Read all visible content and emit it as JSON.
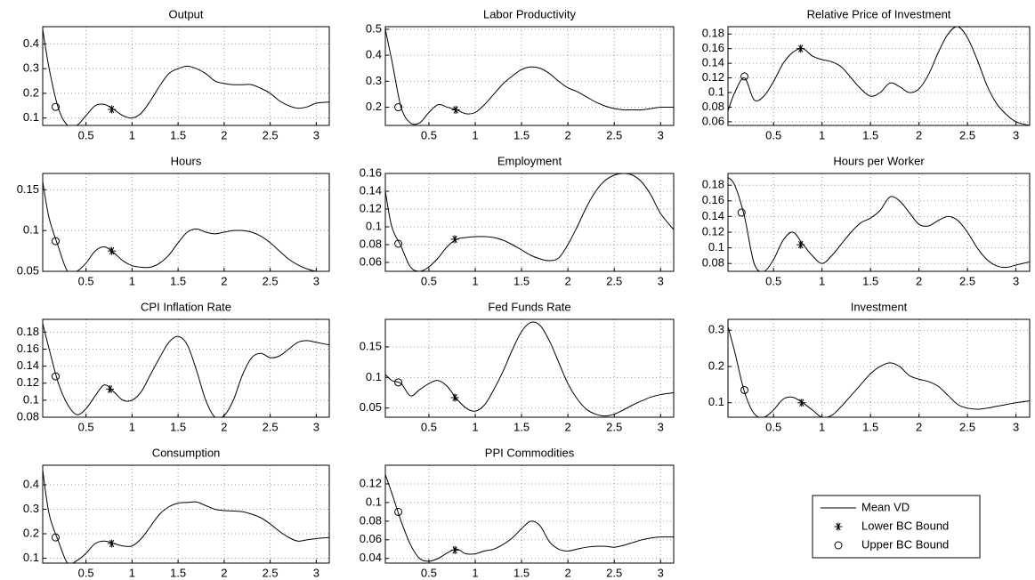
{
  "chart_data": [
    {
      "type": "line",
      "title": "Output",
      "x": [
        0.03,
        0.1,
        0.2,
        0.3,
        0.4,
        0.5,
        0.6,
        0.7,
        0.8,
        0.9,
        1.0,
        1.1,
        1.2,
        1.3,
        1.4,
        1.5,
        1.6,
        1.7,
        1.8,
        1.9,
        2.0,
        2.1,
        2.2,
        2.3,
        2.4,
        2.5,
        2.6,
        2.7,
        2.8,
        2.9,
        3.0,
        3.14
      ],
      "values": [
        0.46,
        0.3,
        0.14,
        0.07,
        0.07,
        0.11,
        0.15,
        0.155,
        0.135,
        0.11,
        0.1,
        0.12,
        0.17,
        0.23,
        0.28,
        0.3,
        0.31,
        0.3,
        0.28,
        0.25,
        0.24,
        0.235,
        0.235,
        0.235,
        0.22,
        0.2,
        0.17,
        0.15,
        0.14,
        0.145,
        0.16,
        0.165
      ],
      "upper_bound": {
        "x": 0.17,
        "value": 0.145
      },
      "lower_bound": {
        "x": 0.78,
        "value": 0.135
      },
      "color": "#000000",
      "xlim": [
        0.03,
        3.1416
      ],
      "ylim": [
        0.07,
        0.47
      ],
      "xticks": [
        0.5,
        1,
        1.5,
        2,
        2.5,
        3
      ],
      "yticks": [
        0.1,
        0.2,
        0.3,
        0.4
      ],
      "grid": true
    },
    {
      "type": "line",
      "title": "Labor Productivity",
      "x": [
        0.03,
        0.1,
        0.2,
        0.3,
        0.4,
        0.5,
        0.6,
        0.7,
        0.8,
        0.9,
        1.0,
        1.1,
        1.2,
        1.3,
        1.4,
        1.5,
        1.6,
        1.7,
        1.8,
        1.9,
        2.0,
        2.1,
        2.2,
        2.3,
        2.4,
        2.5,
        2.6,
        2.7,
        2.8,
        2.9,
        3.0,
        3.14
      ],
      "values": [
        0.5,
        0.38,
        0.2,
        0.14,
        0.14,
        0.18,
        0.21,
        0.2,
        0.19,
        0.175,
        0.18,
        0.21,
        0.25,
        0.29,
        0.32,
        0.345,
        0.355,
        0.35,
        0.33,
        0.3,
        0.275,
        0.26,
        0.24,
        0.22,
        0.205,
        0.195,
        0.19,
        0.19,
        0.19,
        0.195,
        0.2,
        0.2
      ],
      "upper_bound": {
        "x": 0.17,
        "value": 0.2
      },
      "lower_bound": {
        "x": 0.79,
        "value": 0.19
      },
      "color": "#000000",
      "xlim": [
        0.03,
        3.1416
      ],
      "ylim": [
        0.13,
        0.51
      ],
      "xticks": [
        0.5,
        1,
        1.5,
        2,
        2.5,
        3
      ],
      "yticks": [
        0.2,
        0.3,
        0.4,
        0.5
      ],
      "grid": true
    },
    {
      "type": "line",
      "title": "Relative Price of Investment",
      "x": [
        0.03,
        0.1,
        0.2,
        0.3,
        0.4,
        0.5,
        0.6,
        0.7,
        0.8,
        0.9,
        1.0,
        1.1,
        1.2,
        1.3,
        1.4,
        1.5,
        1.6,
        1.7,
        1.8,
        1.9,
        2.0,
        2.1,
        2.2,
        2.3,
        2.4,
        2.5,
        2.6,
        2.7,
        2.8,
        2.9,
        3.0,
        3.14
      ],
      "values": [
        0.075,
        0.1,
        0.12,
        0.09,
        0.095,
        0.115,
        0.14,
        0.155,
        0.16,
        0.15,
        0.145,
        0.142,
        0.135,
        0.12,
        0.105,
        0.095,
        0.1,
        0.113,
        0.108,
        0.1,
        0.105,
        0.125,
        0.155,
        0.18,
        0.19,
        0.175,
        0.145,
        0.11,
        0.085,
        0.07,
        0.06,
        0.055
      ],
      "upper_bound": {
        "x": 0.2,
        "value": 0.122
      },
      "lower_bound": {
        "x": 0.78,
        "value": 0.16
      },
      "color": "#000000",
      "xlim": [
        0.03,
        3.1416
      ],
      "ylim": [
        0.055,
        0.19
      ],
      "xticks": [
        0.5,
        1,
        1.5,
        2,
        2.5,
        3
      ],
      "yticks": [
        0.06,
        0.08,
        0.1,
        0.12,
        0.14,
        0.16,
        0.18
      ],
      "grid": true
    },
    {
      "type": "line",
      "title": "Hours",
      "x": [
        0.03,
        0.1,
        0.2,
        0.3,
        0.4,
        0.5,
        0.6,
        0.7,
        0.8,
        0.9,
        1.0,
        1.1,
        1.2,
        1.3,
        1.4,
        1.5,
        1.6,
        1.7,
        1.8,
        1.9,
        2.0,
        2.1,
        2.2,
        2.3,
        2.4,
        2.5,
        2.6,
        2.7,
        2.8,
        2.9,
        3.0,
        3.14
      ],
      "values": [
        0.16,
        0.115,
        0.08,
        0.05,
        0.05,
        0.06,
        0.075,
        0.08,
        0.073,
        0.063,
        0.057,
        0.055,
        0.055,
        0.06,
        0.07,
        0.085,
        0.098,
        0.102,
        0.098,
        0.096,
        0.098,
        0.1,
        0.1,
        0.098,
        0.093,
        0.085,
        0.075,
        0.065,
        0.058,
        0.053,
        0.05,
        0.05
      ],
      "upper_bound": {
        "x": 0.17,
        "value": 0.087
      },
      "lower_bound": {
        "x": 0.78,
        "value": 0.075
      },
      "color": "#000000",
      "xlim": [
        0.03,
        3.1416
      ],
      "ylim": [
        0.05,
        0.17
      ],
      "xticks": [
        0.5,
        1,
        1.5,
        2,
        2.5,
        3
      ],
      "yticks": [
        0.05,
        0.1,
        0.15
      ],
      "grid": true
    },
    {
      "type": "line",
      "title": "Employment",
      "x": [
        0.03,
        0.1,
        0.2,
        0.3,
        0.4,
        0.5,
        0.6,
        0.7,
        0.8,
        0.9,
        1.0,
        1.1,
        1.2,
        1.3,
        1.4,
        1.5,
        1.6,
        1.7,
        1.8,
        1.9,
        2.0,
        2.1,
        2.2,
        2.3,
        2.4,
        2.5,
        2.6,
        2.7,
        2.8,
        2.9,
        3.0,
        3.14
      ],
      "values": [
        0.14,
        0.1,
        0.078,
        0.055,
        0.05,
        0.055,
        0.065,
        0.078,
        0.086,
        0.088,
        0.089,
        0.089,
        0.088,
        0.085,
        0.08,
        0.074,
        0.068,
        0.064,
        0.062,
        0.065,
        0.08,
        0.1,
        0.122,
        0.14,
        0.152,
        0.158,
        0.16,
        0.158,
        0.15,
        0.135,
        0.115,
        0.097
      ],
      "upper_bound": {
        "x": 0.17,
        "value": 0.081
      },
      "lower_bound": {
        "x": 0.78,
        "value": 0.086
      },
      "color": "#000000",
      "xlim": [
        0.03,
        3.1416
      ],
      "ylim": [
        0.05,
        0.16
      ],
      "xticks": [
        0.5,
        1,
        1.5,
        2,
        2.5,
        3
      ],
      "yticks": [
        0.06,
        0.08,
        0.1,
        0.12,
        0.14,
        0.16
      ],
      "grid": true
    },
    {
      "type": "line",
      "title": "Hours per Worker",
      "x": [
        0.03,
        0.1,
        0.2,
        0.3,
        0.4,
        0.5,
        0.6,
        0.7,
        0.8,
        0.9,
        1.0,
        1.1,
        1.2,
        1.3,
        1.4,
        1.5,
        1.6,
        1.7,
        1.8,
        1.9,
        2.0,
        2.1,
        2.2,
        2.3,
        2.4,
        2.5,
        2.6,
        2.7,
        2.8,
        2.9,
        3.0,
        3.14
      ],
      "values": [
        0.19,
        0.18,
        0.14,
        0.08,
        0.07,
        0.085,
        0.11,
        0.12,
        0.105,
        0.09,
        0.08,
        0.09,
        0.105,
        0.12,
        0.132,
        0.138,
        0.148,
        0.165,
        0.16,
        0.145,
        0.13,
        0.128,
        0.135,
        0.14,
        0.135,
        0.12,
        0.1,
        0.085,
        0.077,
        0.075,
        0.078,
        0.082
      ],
      "upper_bound": {
        "x": 0.17,
        "value": 0.145
      },
      "lower_bound": {
        "x": 0.78,
        "value": 0.104
      },
      "color": "#000000",
      "xlim": [
        0.03,
        3.1416
      ],
      "ylim": [
        0.07,
        0.195
      ],
      "xticks": [
        0.5,
        1,
        1.5,
        2,
        2.5,
        3
      ],
      "yticks": [
        0.08,
        0.1,
        0.12,
        0.14,
        0.16,
        0.18
      ],
      "grid": true
    },
    {
      "type": "line",
      "title": "CPI Inflation Rate",
      "x": [
        0.03,
        0.1,
        0.2,
        0.3,
        0.4,
        0.5,
        0.6,
        0.7,
        0.8,
        0.9,
        1.0,
        1.1,
        1.2,
        1.3,
        1.4,
        1.5,
        1.6,
        1.7,
        1.8,
        1.9,
        2.0,
        2.1,
        2.2,
        2.3,
        2.4,
        2.5,
        2.6,
        2.7,
        2.8,
        2.9,
        3.0,
        3.14
      ],
      "values": [
        0.19,
        0.16,
        0.12,
        0.095,
        0.083,
        0.09,
        0.105,
        0.118,
        0.11,
        0.1,
        0.1,
        0.11,
        0.13,
        0.15,
        0.168,
        0.175,
        0.165,
        0.135,
        0.1,
        0.08,
        0.082,
        0.1,
        0.13,
        0.15,
        0.155,
        0.15,
        0.152,
        0.16,
        0.168,
        0.17,
        0.168,
        0.165
      ],
      "upper_bound": {
        "x": 0.17,
        "value": 0.128
      },
      "lower_bound": {
        "x": 0.76,
        "value": 0.113
      },
      "color": "#000000",
      "xlim": [
        0.03,
        3.1416
      ],
      "ylim": [
        0.08,
        0.195
      ],
      "xticks": [
        0.5,
        1,
        1.5,
        2,
        2.5,
        3
      ],
      "yticks": [
        0.08,
        0.1,
        0.12,
        0.14,
        0.16,
        0.18
      ],
      "grid": true
    },
    {
      "type": "line",
      "title": "Fed Funds Rate",
      "x": [
        0.03,
        0.1,
        0.2,
        0.3,
        0.4,
        0.5,
        0.6,
        0.7,
        0.8,
        0.9,
        1.0,
        1.1,
        1.2,
        1.3,
        1.4,
        1.5,
        1.6,
        1.7,
        1.8,
        1.9,
        2.0,
        2.1,
        2.2,
        2.3,
        2.4,
        2.5,
        2.6,
        2.7,
        2.8,
        2.9,
        3.0,
        3.14
      ],
      "values": [
        0.105,
        0.095,
        0.09,
        0.07,
        0.08,
        0.09,
        0.095,
        0.085,
        0.065,
        0.05,
        0.045,
        0.055,
        0.08,
        0.11,
        0.145,
        0.175,
        0.19,
        0.185,
        0.16,
        0.125,
        0.09,
        0.065,
        0.048,
        0.04,
        0.037,
        0.04,
        0.047,
        0.055,
        0.062,
        0.068,
        0.072,
        0.075
      ],
      "upper_bound": {
        "x": 0.17,
        "value": 0.092
      },
      "lower_bound": {
        "x": 0.78,
        "value": 0.067
      },
      "color": "#000000",
      "xlim": [
        0.03,
        3.1416
      ],
      "ylim": [
        0.035,
        0.195
      ],
      "xticks": [
        0.5,
        1,
        1.5,
        2,
        2.5,
        3
      ],
      "yticks": [
        0.05,
        0.1,
        0.15
      ],
      "grid": true
    },
    {
      "type": "line",
      "title": "Investment",
      "x": [
        0.03,
        0.1,
        0.2,
        0.3,
        0.4,
        0.5,
        0.6,
        0.7,
        0.8,
        0.9,
        1.0,
        1.1,
        1.2,
        1.3,
        1.4,
        1.5,
        1.6,
        1.7,
        1.8,
        1.9,
        2.0,
        2.1,
        2.2,
        2.3,
        2.4,
        2.5,
        2.6,
        2.7,
        2.8,
        2.9,
        3.0,
        3.14
      ],
      "values": [
        0.31,
        0.24,
        0.13,
        0.07,
        0.06,
        0.08,
        0.11,
        0.115,
        0.1,
        0.08,
        0.06,
        0.065,
        0.09,
        0.12,
        0.15,
        0.18,
        0.2,
        0.21,
        0.2,
        0.175,
        0.165,
        0.158,
        0.145,
        0.12,
        0.095,
        0.085,
        0.082,
        0.085,
        0.09,
        0.095,
        0.1,
        0.105
      ],
      "upper_bound": {
        "x": 0.2,
        "value": 0.135
      },
      "lower_bound": {
        "x": 0.79,
        "value": 0.1
      },
      "color": "#000000",
      "xlim": [
        0.03,
        3.1416
      ],
      "ylim": [
        0.06,
        0.33
      ],
      "xticks": [
        0.5,
        1,
        1.5,
        2,
        2.5,
        3
      ],
      "yticks": [
        0.1,
        0.2,
        0.3
      ],
      "grid": true
    },
    {
      "type": "line",
      "title": "Consumption",
      "x": [
        0.03,
        0.1,
        0.2,
        0.3,
        0.4,
        0.5,
        0.6,
        0.7,
        0.8,
        0.9,
        1.0,
        1.1,
        1.2,
        1.3,
        1.4,
        1.5,
        1.6,
        1.7,
        1.8,
        1.9,
        2.0,
        2.1,
        2.2,
        2.3,
        2.4,
        2.5,
        2.6,
        2.7,
        2.8,
        2.9,
        3.0,
        3.14
      ],
      "values": [
        0.46,
        0.28,
        0.17,
        0.08,
        0.09,
        0.12,
        0.16,
        0.17,
        0.16,
        0.15,
        0.15,
        0.18,
        0.23,
        0.28,
        0.31,
        0.325,
        0.328,
        0.33,
        0.315,
        0.3,
        0.295,
        0.293,
        0.29,
        0.28,
        0.265,
        0.24,
        0.21,
        0.185,
        0.17,
        0.175,
        0.18,
        0.185
      ],
      "upper_bound": {
        "x": 0.17,
        "value": 0.185
      },
      "lower_bound": {
        "x": 0.78,
        "value": 0.16
      },
      "color": "#000000",
      "xlim": [
        0.03,
        3.1416
      ],
      "ylim": [
        0.08,
        0.48
      ],
      "xticks": [
        0.5,
        1,
        1.5,
        2,
        2.5,
        3
      ],
      "yticks": [
        0.1,
        0.2,
        0.3,
        0.4
      ],
      "grid": true
    },
    {
      "type": "line",
      "title": "PPI Commodities",
      "x": [
        0.03,
        0.1,
        0.2,
        0.3,
        0.4,
        0.5,
        0.6,
        0.7,
        0.8,
        0.9,
        1.0,
        1.1,
        1.2,
        1.3,
        1.4,
        1.5,
        1.6,
        1.7,
        1.8,
        1.9,
        2.0,
        2.1,
        2.2,
        2.3,
        2.4,
        2.5,
        2.6,
        2.7,
        2.8,
        2.9,
        3.0,
        3.14
      ],
      "values": [
        0.13,
        0.11,
        0.08,
        0.055,
        0.04,
        0.037,
        0.04,
        0.046,
        0.05,
        0.045,
        0.045,
        0.048,
        0.05,
        0.055,
        0.062,
        0.072,
        0.08,
        0.075,
        0.058,
        0.05,
        0.048,
        0.05,
        0.052,
        0.053,
        0.053,
        0.052,
        0.054,
        0.057,
        0.06,
        0.062,
        0.063,
        0.063
      ],
      "upper_bound": {
        "x": 0.17,
        "value": 0.09
      },
      "lower_bound": {
        "x": 0.78,
        "value": 0.049
      },
      "color": "#000000",
      "xlim": [
        0.03,
        3.1416
      ],
      "ylim": [
        0.035,
        0.14
      ],
      "xticks": [
        0.5,
        1,
        1.5,
        2,
        2.5,
        3
      ],
      "yticks": [
        0.04,
        0.06,
        0.08,
        0.1,
        0.12
      ],
      "grid": true
    }
  ],
  "legend": {
    "items": [
      "Mean VD",
      "Lower BC Bound",
      "Upper BC Bound"
    ]
  }
}
